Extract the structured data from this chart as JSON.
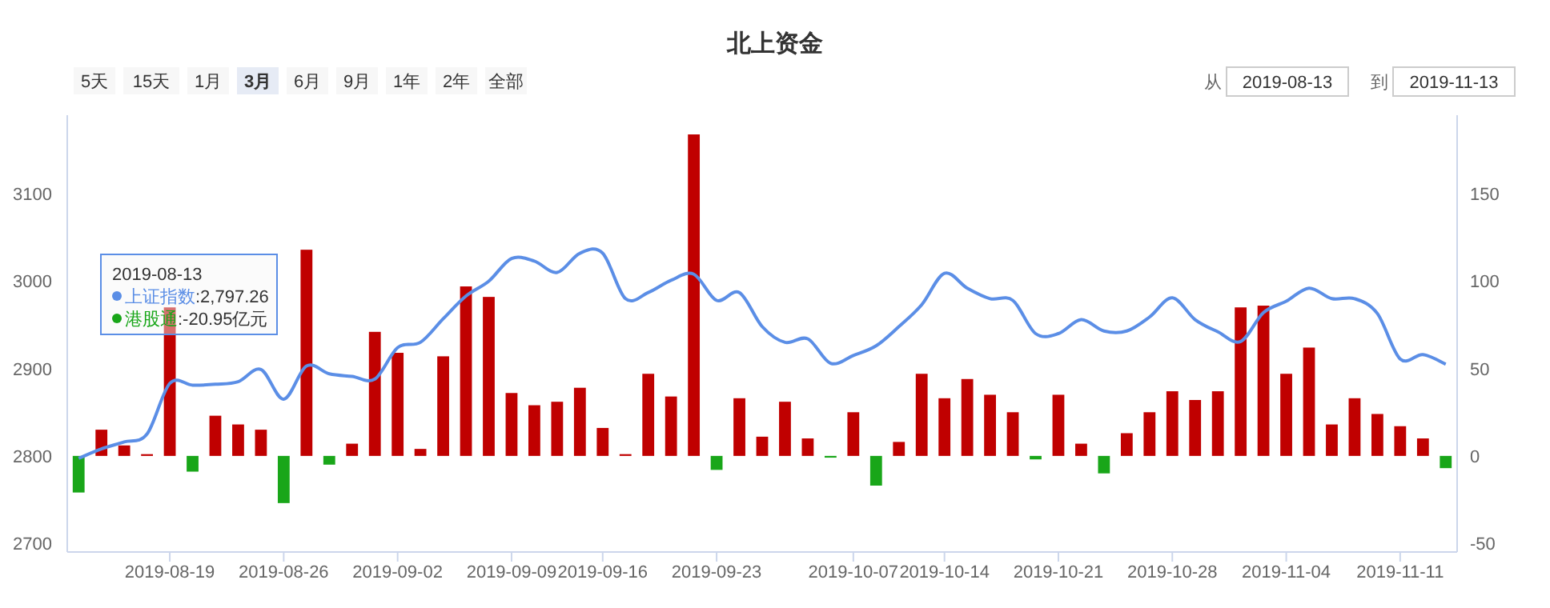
{
  "chart_data": {
    "type": "bar",
    "title": "北上资金",
    "categories": [
      null,
      null,
      null,
      null,
      "2019-08-19",
      null,
      null,
      null,
      null,
      "2019-08-26",
      null,
      null,
      null,
      null,
      "2019-09-02",
      null,
      null,
      null,
      null,
      "2019-09-09",
      null,
      null,
      null,
      "2019-09-16",
      null,
      null,
      null,
      null,
      "2019-09-23",
      null,
      null,
      null,
      null,
      null,
      "2019-10-07",
      null,
      null,
      null,
      "2019-10-14",
      null,
      null,
      null,
      null,
      "2019-10-21",
      null,
      null,
      null,
      null,
      "2019-10-28",
      null,
      null,
      null,
      null,
      "2019-11-04",
      null,
      null,
      null,
      null,
      "2019-11-11",
      null,
      null
    ],
    "series": [
      {
        "name": "港股通",
        "type": "bar",
        "axis": "y2",
        "values": [
          -20.95,
          15,
          6,
          1,
          85,
          -9,
          23,
          18,
          15,
          -27,
          118,
          -5,
          7,
          71,
          59,
          4,
          57,
          97,
          91,
          36,
          29,
          31,
          39,
          16,
          1,
          47,
          34,
          184,
          -8,
          33,
          11,
          31,
          10,
          -1,
          25,
          -17,
          8,
          47,
          33,
          44,
          35,
          25,
          -2,
          35,
          7,
          -10,
          13,
          25,
          37,
          32,
          37,
          85,
          86,
          47,
          62,
          18,
          33,
          24,
          17,
          10,
          -7
        ],
        "colors": [
          "#19a619",
          "#c00000",
          "#c00000",
          "#c00000",
          "#c00000",
          "#19a619",
          "#c00000",
          "#c00000",
          "#c00000",
          "#19a619",
          "#c00000",
          "#19a619",
          "#c00000",
          "#c00000",
          "#c00000",
          "#c00000",
          "#c00000",
          "#c00000",
          "#c00000",
          "#c00000",
          "#c00000",
          "#c00000",
          "#c00000",
          "#c00000",
          "#c00000",
          "#c00000",
          "#c00000",
          "#c00000",
          "#19a619",
          "#c00000",
          "#c00000",
          "#c00000",
          "#c00000",
          "#19a619",
          "#c00000",
          "#19a619",
          "#c00000",
          "#c00000",
          "#c00000",
          "#c00000",
          "#c00000",
          "#c00000",
          "#19a619",
          "#c00000",
          "#c00000",
          "#19a619",
          "#c00000",
          "#c00000",
          "#c00000",
          "#c00000",
          "#c00000",
          "#c00000",
          "#c00000",
          "#c00000",
          "#c00000",
          "#c00000",
          "#c00000",
          "#c00000",
          "#c00000",
          "#c00000",
          "#19a619"
        ]
      },
      {
        "name": "上证指数",
        "type": "line",
        "color": "#5b8ee6",
        "values": [
          2797.26,
          2808,
          2816,
          2825,
          2883,
          2881,
          2882,
          2885,
          2899,
          2865,
          2903,
          2894,
          2891,
          2888,
          2924,
          2930,
          2957,
          2983,
          3000,
          3026,
          3023,
          3010,
          3032,
          3032,
          2980,
          2987,
          3001,
          3008,
          2978,
          2987,
          2948,
          2930,
          2934,
          2906,
          2915,
          2926,
          2948,
          2973,
          3009,
          2992,
          2980,
          2978,
          2940,
          2940,
          2956,
          2943,
          2943,
          2959,
          2981,
          2956,
          2942,
          2931,
          2964,
          2977,
          2992,
          2980,
          2980,
          2963,
          2911,
          2916,
          2905
        ]
      }
    ],
    "legend": "top left",
    "ylim": [
      2690,
      3190
    ],
    "yticks": [
      2700,
      2800,
      2900,
      3000,
      3100
    ],
    "y2lim": [
      -55,
      195
    ],
    "y2ticks": [
      -50,
      0,
      50,
      100,
      150
    ],
    "annotations": [
      "5天",
      "15天",
      "1月",
      "3月",
      "6月",
      "9月",
      "1年",
      "2年",
      "全部",
      "从",
      "2019-08-13",
      "到",
      "2019-11-13",
      "2019-08-13",
      ":2,797.26",
      ":-20.95亿元"
    ]
  }
}
